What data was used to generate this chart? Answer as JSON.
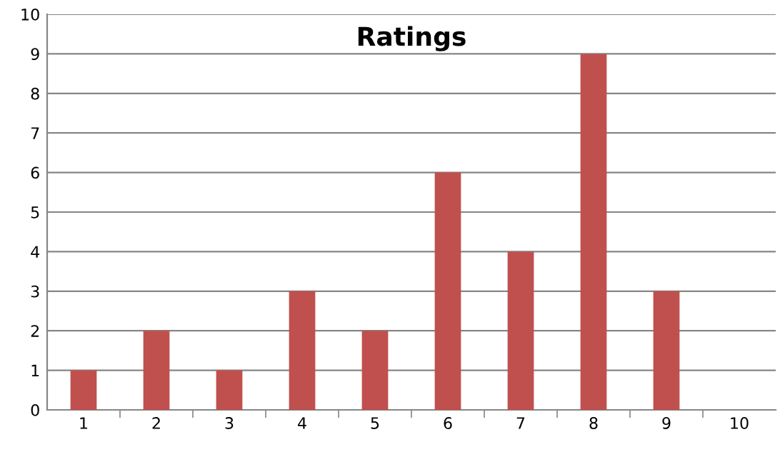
{
  "chart_data": {
    "type": "bar",
    "title": "Ratings",
    "categories": [
      "1",
      "2",
      "3",
      "4",
      "5",
      "6",
      "7",
      "8",
      "9",
      "10"
    ],
    "values": [
      1,
      2,
      1,
      3,
      2,
      6,
      4,
      9,
      3,
      0
    ],
    "color": "#c0504d",
    "ylim": [
      0,
      10
    ],
    "yticks": [
      0,
      1,
      2,
      3,
      4,
      5,
      6,
      7,
      8,
      9,
      10
    ],
    "grid": "y"
  }
}
